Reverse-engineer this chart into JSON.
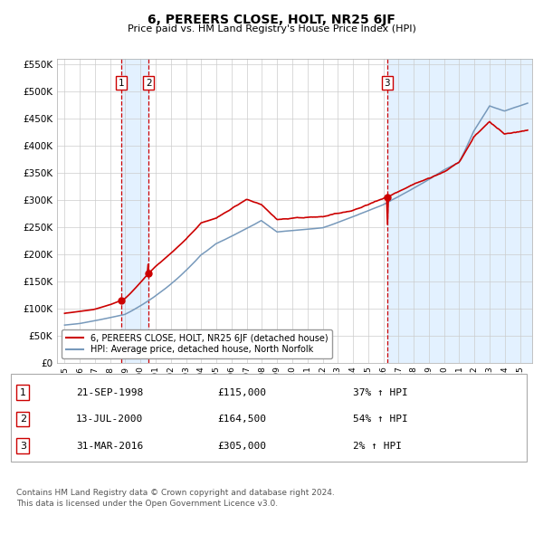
{
  "title": "6, PEREERS CLOSE, HOLT, NR25 6JF",
  "subtitle": "Price paid vs. HM Land Registry's House Price Index (HPI)",
  "transactions": [
    {
      "num": 1,
      "date": "21-SEP-1998",
      "price": 115000,
      "pct": "37% ↑ HPI",
      "x_year": 1998.72
    },
    {
      "num": 2,
      "date": "13-JUL-2000",
      "price": 164500,
      "pct": "54% ↑ HPI",
      "x_year": 2000.53
    },
    {
      "num": 3,
      "date": "31-MAR-2016",
      "price": 305000,
      "pct": "2% ↑ HPI",
      "x_year": 2016.25
    }
  ],
  "legend_line1": "6, PEREERS CLOSE, HOLT, NR25 6JF (detached house)",
  "legend_line2": "HPI: Average price, detached house, North Norfolk",
  "footnote1": "Contains HM Land Registry data © Crown copyright and database right 2024.",
  "footnote2": "This data is licensed under the Open Government Licence v3.0.",
  "red_color": "#cc0000",
  "blue_color": "#7799bb",
  "shading_color": "#ddeeff",
  "yticks": [
    0,
    50000,
    100000,
    150000,
    200000,
    250000,
    300000,
    350000,
    400000,
    450000,
    500000,
    550000
  ],
  "ymax": 560000,
  "xmin": 1994.5,
  "xmax": 2025.8
}
